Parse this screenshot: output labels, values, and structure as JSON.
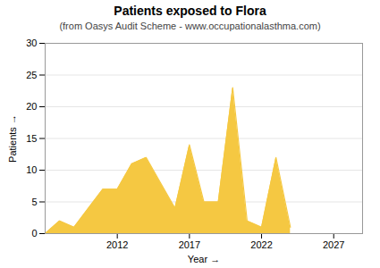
{
  "chart_data": {
    "type": "area",
    "title": "Patients exposed to Flora",
    "subtitle": "(from Oasys Audit Scheme - www.occupationalasthma.com)",
    "xlabel": "Year",
    "ylabel": "Patients",
    "x": [
      2007,
      2008,
      2009,
      2010,
      2011,
      2012,
      2013,
      2014,
      2015,
      2016,
      2017,
      2018,
      2019,
      2020,
      2021,
      2022,
      2023,
      2024
    ],
    "values": [
      0,
      2,
      1,
      4,
      7,
      7,
      11,
      12,
      8,
      4,
      14,
      5,
      5,
      23,
      2,
      1,
      12,
      1
    ],
    "color": "#f5c842",
    "xlim": [
      2007,
      2029
    ],
    "xticks": [
      2012,
      2017,
      2022,
      2027
    ],
    "ylim": [
      0,
      30
    ],
    "yticks": [
      0,
      5,
      10,
      15,
      20,
      25,
      30
    ],
    "grid": true
  }
}
